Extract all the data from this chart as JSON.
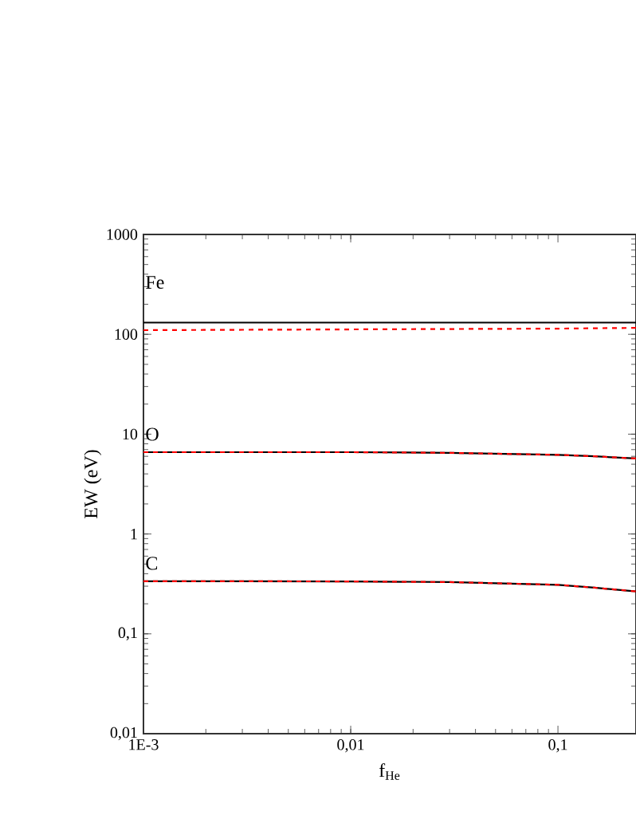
{
  "chart_data": {
    "type": "line",
    "xlabel": "f$_{He}$",
    "ylabel": "EW (eV)",
    "log": "xy",
    "x": [
      0.001,
      0.003,
      0.01,
      0.03,
      0.1,
      0.15,
      0.238
    ],
    "series": [
      {
        "color": "#000000",
        "line_style": "solid",
        "values": [
          131,
          131,
          131,
          131,
          131,
          131,
          131
        ]
      },
      {
        "color": "#ff0000",
        "line_style": "dashed",
        "values": [
          110,
          111,
          112,
          113,
          114,
          115,
          116
        ]
      },
      {
        "color": "#000000",
        "line_style": "solid",
        "values": [
          6.6,
          6.6,
          6.6,
          6.5,
          6.2,
          6.0,
          5.7
        ]
      },
      {
        "color": "#ff0000",
        "line_style": "dashed",
        "values": [
          6.6,
          6.6,
          6.6,
          6.5,
          6.2,
          6.0,
          5.7
        ]
      },
      {
        "color": "#000000",
        "line_style": "solid",
        "values": [
          0.336,
          0.336,
          0.335,
          0.33,
          0.31,
          0.29,
          0.266
        ]
      },
      {
        "color": "#ff0000",
        "line_style": "dashed",
        "values": [
          0.336,
          0.336,
          0.335,
          0.33,
          0.31,
          0.29,
          0.266
        ]
      }
    ],
    "annotations": [
      "Fe",
      "O",
      "C"
    ],
    "xlim": [
      0.001,
      0.238
    ],
    "ylim": [
      0.01,
      1000
    ],
    "xticks": [
      {
        "value": 0.001,
        "label": "1E-3"
      },
      {
        "value": 0.01,
        "label": "0,01"
      },
      {
        "value": 0.1,
        "label": "0,1"
      }
    ],
    "yticks": [
      {
        "value": 0.01,
        "label": "0,01"
      },
      {
        "value": 0.1,
        "label": "0,1"
      },
      {
        "value": 1,
        "label": "1"
      },
      {
        "value": 10,
        "label": "10"
      },
      {
        "value": 100,
        "label": "100"
      },
      {
        "value": 1000,
        "label": "1000"
      }
    ]
  }
}
